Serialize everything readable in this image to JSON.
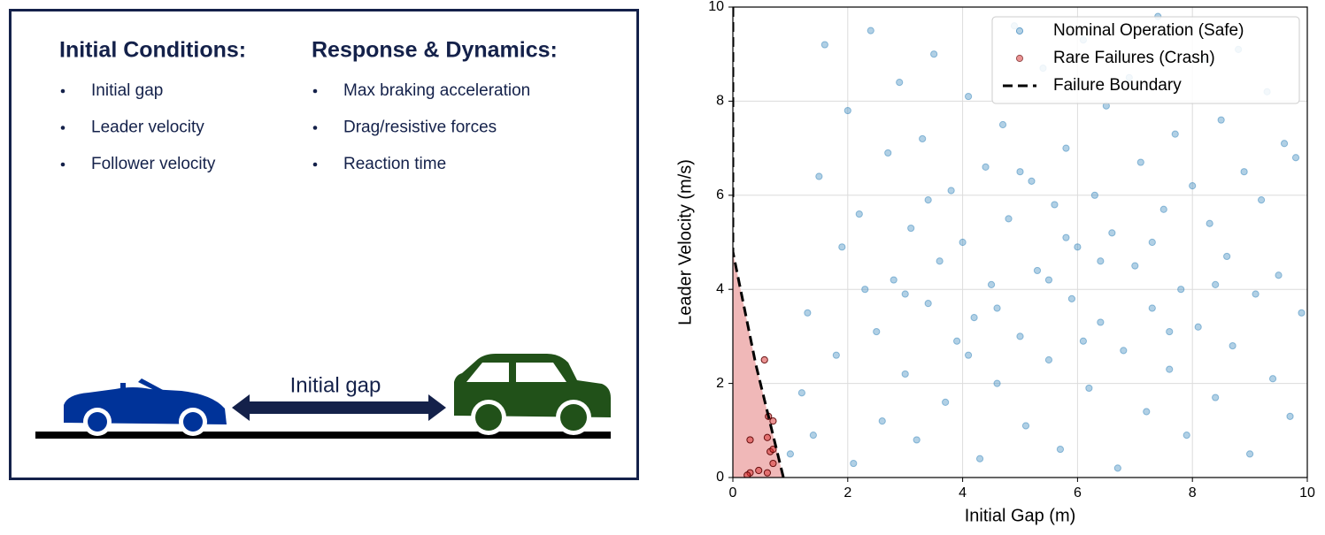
{
  "panel": {
    "columns": [
      {
        "heading": "Initial Conditions:",
        "items": [
          "Initial gap",
          "Leader velocity",
          "Follower velocity"
        ]
      },
      {
        "heading": "Response & Dynamics:",
        "items": [
          "Max braking acceleration",
          "Drag/resistive forces",
          "Reaction time"
        ]
      }
    ],
    "gap_label": "Initial gap"
  },
  "chart_data": {
    "type": "scatter",
    "xlabel": "Initial Gap (m)",
    "ylabel": "Leader Velocity (m/s)",
    "xlim": [
      0,
      10
    ],
    "ylim": [
      0,
      10
    ],
    "xticks": [
      0,
      2,
      4,
      6,
      8,
      10
    ],
    "yticks": [
      0,
      2,
      4,
      6,
      8,
      10
    ],
    "grid": true,
    "legend": "upper right",
    "series": [
      {
        "name": "Nominal Operation (Safe)",
        "color": "#1f77b4",
        "mark": "point",
        "x": [
          1.0,
          1.2,
          1.3,
          1.5,
          1.6,
          1.8,
          1.9,
          2.0,
          2.1,
          2.2,
          2.4,
          2.5,
          2.6,
          2.7,
          2.8,
          2.9,
          3.0,
          3.1,
          3.2,
          3.3,
          3.4,
          3.5,
          3.6,
          3.7,
          3.8,
          3.9,
          4.0,
          4.1,
          4.2,
          4.3,
          4.4,
          4.5,
          4.6,
          4.7,
          4.8,
          4.9,
          5.0,
          5.1,
          5.2,
          5.3,
          5.4,
          5.5,
          5.6,
          5.7,
          5.8,
          5.9,
          6.0,
          6.1,
          6.2,
          6.3,
          6.4,
          6.5,
          6.6,
          6.7,
          6.8,
          6.9,
          7.0,
          7.1,
          7.2,
          7.3,
          7.4,
          7.5,
          7.6,
          7.7,
          7.8,
          7.9,
          8.0,
          8.1,
          8.2,
          8.3,
          8.4,
          8.5,
          8.6,
          8.7,
          8.8,
          8.9,
          9.0,
          9.1,
          9.2,
          9.3,
          9.4,
          9.5,
          9.6,
          9.7,
          9.8,
          9.9,
          1.4,
          2.3,
          3.4,
          4.6,
          5.5,
          6.4,
          7.3,
          8.4,
          5.0,
          4.1,
          6.1,
          7.6,
          3.0,
          5.8
        ],
        "values": [
          0.5,
          1.8,
          3.5,
          6.4,
          9.2,
          2.6,
          4.9,
          7.8,
          0.3,
          5.6,
          9.5,
          3.1,
          1.2,
          6.9,
          4.2,
          8.4,
          2.2,
          5.3,
          0.8,
          7.2,
          3.7,
          9.0,
          4.6,
          1.6,
          6.1,
          2.9,
          5.0,
          8.1,
          3.4,
          0.4,
          6.6,
          4.1,
          2.0,
          7.5,
          5.5,
          9.6,
          3.0,
          1.1,
          6.3,
          4.4,
          8.7,
          2.5,
          5.8,
          0.6,
          7.0,
          3.8,
          4.9,
          9.3,
          1.9,
          6.0,
          3.3,
          7.9,
          5.2,
          0.2,
          2.7,
          8.5,
          4.5,
          6.7,
          1.4,
          3.6,
          9.8,
          5.7,
          2.3,
          7.3,
          4.0,
          0.9,
          6.2,
          3.2,
          8.9,
          5.4,
          1.7,
          7.6,
          4.7,
          2.8,
          9.1,
          6.5,
          0.5,
          3.9,
          5.9,
          8.2,
          2.1,
          4.3,
          7.1,
          1.3,
          6.8,
          3.5,
          0.9,
          4.0,
          5.9,
          3.6,
          4.2,
          4.6,
          5.0,
          4.1,
          6.5,
          2.6,
          2.9,
          3.1,
          3.9,
          5.1
        ]
      },
      {
        "name": "Rare Failures (Crash)",
        "color": "#d62728",
        "mark": "point",
        "x": [
          0.3,
          0.6,
          0.65,
          0.7,
          0.45,
          0.3,
          0.6,
          0.55,
          0.62,
          0.7,
          0.7,
          0.25
        ],
        "values": [
          0.8,
          0.85,
          0.55,
          0.6,
          0.15,
          0.1,
          0.1,
          2.5,
          1.3,
          1.2,
          0.3,
          0.05
        ]
      },
      {
        "name": "Failure Boundary",
        "color": "#000000",
        "mark": "line",
        "fill": "#f0b8b8",
        "x": [
          0,
          0,
          0.1,
          0.2,
          0.3,
          0.4,
          0.5,
          0.6,
          0.7,
          0.8,
          0.88
        ],
        "values": [
          10,
          4.8,
          4.2,
          3.6,
          3.0,
          2.4,
          1.9,
          1.4,
          0.9,
          0.4,
          0
        ]
      }
    ]
  }
}
